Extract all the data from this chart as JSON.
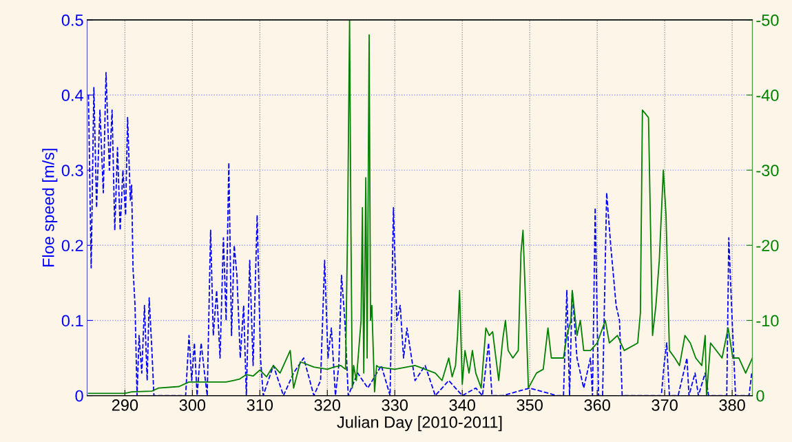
{
  "chart_data": {
    "type": "line",
    "xlabel": "Julian Day [2010-2011]",
    "ylabel": "Floe speed [m/s]",
    "xlim": [
      284.4,
      383
    ],
    "xticks": [
      290,
      300,
      310,
      320,
      330,
      340,
      350,
      360,
      370,
      380
    ],
    "ylim": [
      0,
      0.5
    ],
    "yticks": [
      0,
      0.1,
      0.2,
      0.3,
      0.4,
      0.5
    ],
    "y2lim": [
      0,
      -50
    ],
    "y2ticks": [
      0,
      -10,
      -20,
      -30,
      -40,
      -50
    ],
    "grid": true,
    "marker": "none",
    "series": [
      {
        "color": "#0000ff",
        "line_style": "dashed",
        "x": [
          284.6,
          285.0,
          285.4,
          285.8,
          286.3,
          286.8,
          287.2,
          287.7,
          288.1,
          288.5,
          288.9,
          289.3,
          289.7,
          290.1,
          290.4,
          290.8,
          291.0,
          291.2,
          291.5,
          291.8,
          292.1,
          292.5,
          292.9,
          293.3,
          293.6,
          294.0,
          294.3,
          299.0,
          299.5,
          299.9,
          300.3,
          300.7,
          301.3,
          301.8,
          302.2,
          302.7,
          303.1,
          303.6,
          304.1,
          304.6,
          305.0,
          305.4,
          305.8,
          306.2,
          306.6,
          307.1,
          307.6,
          308.0,
          308.5,
          309.0,
          309.6,
          310.1,
          310.5,
          312.0,
          313.5,
          315.0,
          316.5,
          318.0,
          319.0,
          319.6,
          320.1,
          320.6,
          321.2,
          321.7,
          322.1,
          322.6,
          323.1,
          324.5,
          326.0,
          328.0,
          329.3,
          329.8,
          330.3,
          330.8,
          331.3,
          331.8,
          333.0,
          334.5,
          336.0,
          338.0,
          340.0,
          342.0,
          343.0,
          343.9,
          344.4,
          346.0,
          350.0,
          354.0,
          355.0,
          355.5,
          355.9,
          356.3,
          357.0,
          358.0,
          359.0,
          359.3,
          359.7,
          360.2,
          360.8,
          361.4,
          362.0,
          362.8,
          363.3,
          363.7,
          366.0,
          369.5,
          369.9,
          370.3,
          370.7,
          372.0,
          373.3,
          373.6,
          374.5,
          375.0,
          376.0,
          376.5,
          379.2,
          379.5,
          380.0,
          380.5,
          382.5,
          382.9
        ],
        "values": [
          0.4,
          0.17,
          0.41,
          0.25,
          0.38,
          0.27,
          0.43,
          0.3,
          0.38,
          0.22,
          0.33,
          0.22,
          0.3,
          0.24,
          0.37,
          0.26,
          0.28,
          0.17,
          0.12,
          0.0,
          0.08,
          0.03,
          0.12,
          0.02,
          0.13,
          0.06,
          0.0,
          0.0,
          0.08,
          0.02,
          0.07,
          0.0,
          0.07,
          0.03,
          0.0,
          0.22,
          0.08,
          0.14,
          0.05,
          0.21,
          0.1,
          0.31,
          0.08,
          0.2,
          0.16,
          0.05,
          0.12,
          0.0,
          0.18,
          0.04,
          0.24,
          0.05,
          0.0,
          0.04,
          0.0,
          0.03,
          0.05,
          0.0,
          0.02,
          0.18,
          0.05,
          0.09,
          0.0,
          0.04,
          0.16,
          0.1,
          0.0,
          0.03,
          0.01,
          0.04,
          0.0,
          0.25,
          0.1,
          0.12,
          0.05,
          0.09,
          0.02,
          0.04,
          0.0,
          0.02,
          0.0,
          0.01,
          0.0,
          0.07,
          0.0,
          0.0,
          0.01,
          0.0,
          0.0,
          0.14,
          0.0,
          0.14,
          0.05,
          0.01,
          0.05,
          0.0,
          0.25,
          0.0,
          0.0,
          0.27,
          0.2,
          0.12,
          0.1,
          0.0,
          0.0,
          0.0,
          0.04,
          0.07,
          0.0,
          0.0,
          0.05,
          0.0,
          0.03,
          0.0,
          0.03,
          0.0,
          0.0,
          0.21,
          0.1,
          0.0,
          0.0,
          0.03
        ]
      },
      {
        "color": "#008000",
        "line_style": "solid",
        "axis": "y2",
        "x": [
          284.6,
          290.0,
          291.0,
          294.0,
          295.0,
          298.0,
          299.5,
          305.0,
          306.0,
          307.0,
          308.0,
          309.0,
          310.0,
          311.0,
          312.0,
          313.0,
          314.5,
          315.0,
          316.0,
          318.0,
          320.0,
          321.0,
          322.0,
          322.7,
          323.0,
          323.3,
          323.5,
          323.7,
          323.9,
          324.3,
          325.0,
          325.2,
          325.4,
          325.7,
          325.9,
          326.2,
          326.4,
          326.6,
          327.0,
          327.3,
          327.6,
          330.0,
          333.0,
          336.0,
          337.0,
          338.0,
          338.5,
          339.0,
          339.3,
          339.6,
          340.0,
          340.4,
          341.0,
          341.5,
          342.0,
          342.8,
          343.5,
          344.0,
          344.5,
          345.4,
          346.0,
          346.4,
          346.8,
          347.5,
          348.3,
          348.7,
          349.0,
          349.4,
          349.8,
          351.0,
          352.0,
          352.7,
          353.2,
          354.0,
          355.0,
          355.5,
          356.1,
          356.3,
          357.0,
          357.5,
          358.0,
          359.0,
          360.0,
          361.2,
          361.8,
          363.0,
          364.0,
          366.0,
          366.4,
          366.7,
          367.6,
          368.2,
          368.7,
          369.2,
          369.8,
          370.2,
          370.7,
          371.5,
          372.2,
          373.0,
          373.8,
          374.6,
          375.5,
          376.0,
          376.2,
          376.8,
          378.5,
          379.4,
          380.1,
          381.0,
          382.0,
          383.0
        ],
        "values": [
          -0.3,
          -0.3,
          -0.5,
          -0.6,
          -1.0,
          -1.2,
          -1.8,
          -1.8,
          -2.0,
          -2.2,
          -2.8,
          -2.6,
          -3.4,
          -2.5,
          -4.0,
          -3.0,
          -6.0,
          -1.0,
          -4.5,
          -3.8,
          -3.5,
          -3.8,
          -4.0,
          -3.5,
          -22,
          -50,
          -22,
          -1.0,
          -4.0,
          -2.0,
          -10,
          -25,
          -3.0,
          -29,
          -5.0,
          -48,
          -10,
          -12,
          -0.5,
          -4.0,
          -3.8,
          -3.5,
          -4.0,
          -3.0,
          -2.0,
          -5.0,
          -2.5,
          -4.0,
          -8.0,
          -14,
          -1.5,
          -6.0,
          -3.0,
          -6.0,
          -3.0,
          -1.0,
          -9.0,
          -8.0,
          -8.5,
          -2.0,
          -7.5,
          -10,
          -6.0,
          -5.0,
          -6.0,
          -19,
          -22,
          -12,
          -1.0,
          -3.0,
          -3.5,
          -9.0,
          -5.0,
          -5.0,
          -5.0,
          -8.0,
          -10,
          -14,
          -8.0,
          -10,
          -6.0,
          -6.0,
          -7.0,
          -10,
          -7.0,
          -8.0,
          -6.0,
          -7.0,
          -11,
          -38,
          -37,
          -8.0,
          -12,
          -18,
          -30,
          -24,
          -6.0,
          -5.0,
          -4.0,
          -8.0,
          -7.0,
          -5.0,
          -4.0,
          -8.0,
          0.0,
          -7.0,
          -5.0,
          -9.0,
          -5.0,
          -5.0,
          -3.0,
          -5.0
        ]
      }
    ]
  }
}
